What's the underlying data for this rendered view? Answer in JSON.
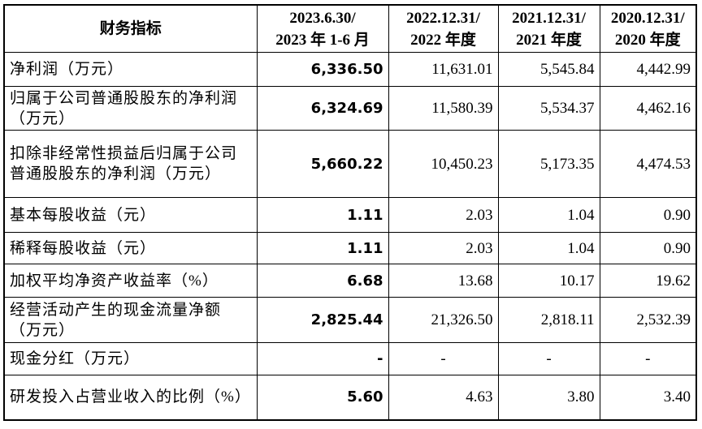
{
  "table": {
    "header": [
      [
        "财务指标"
      ],
      [
        "2023.6.30/",
        "2023 年 1-6 月"
      ],
      [
        "2022.12.31/",
        "2022 年度"
      ],
      [
        "2021.12.31/",
        "2021 年度"
      ],
      [
        "2020.12.31/",
        "2020 年度"
      ]
    ],
    "rows": [
      [
        "净利润（万元）",
        "6,336.50",
        "11,631.01",
        "5,545.84",
        "4,442.99"
      ],
      [
        "归属于公司普通股股东的净利润（万元）",
        "6,324.69",
        "11,580.39",
        "5,534.37",
        "4,462.16"
      ],
      [
        "扣除非经常性损益后归属于公司普通股股东的净利润（万元）",
        "5,660.22",
        "10,450.23",
        "5,173.35",
        "4,474.53"
      ],
      [
        "基本每股收益（元）",
        "1.11",
        "2.03",
        "1.04",
        "0.90"
      ],
      [
        "稀释每股收益（元）",
        "1.11",
        "2.03",
        "1.04",
        "0.90"
      ],
      [
        "加权平均净资产收益率（%）",
        "6.68",
        "13.68",
        "10.17",
        "19.62"
      ],
      [
        "经营活动产生的现金流量净额（万元）",
        "2,825.44",
        "21,326.50",
        "2,818.11",
        "2,532.39"
      ],
      [
        "现金分红（万元）",
        "-",
        "-",
        "-",
        "-"
      ],
      [
        "研发投入占营业收入的比例（%）",
        "5.60",
        "4.63",
        "3.80",
        "3.40"
      ]
    ]
  }
}
